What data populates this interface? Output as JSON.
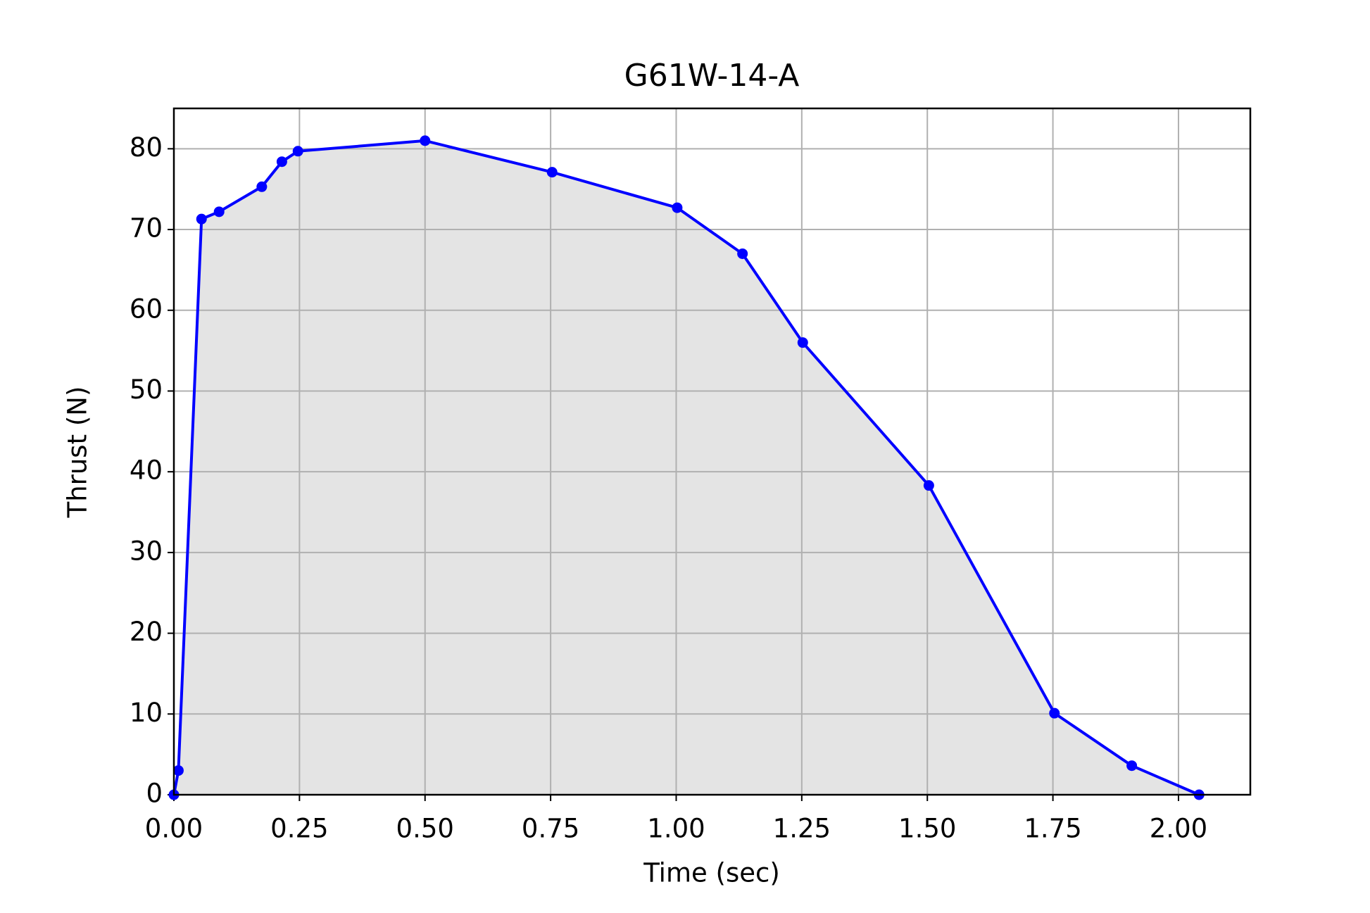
{
  "chart_data": {
    "type": "line",
    "title": "G61W-14-A",
    "x_label": "Time (sec)",
    "y_label": "Thrust (N)",
    "x": [
      0,
      0.009,
      0.055,
      0.09,
      0.175,
      0.215,
      0.247,
      0.5,
      0.753,
      1.002,
      1.132,
      1.252,
      1.503,
      1.753,
      1.907,
      2.041
    ],
    "series": [
      {
        "name": "Thrust",
        "color": "#0000ff",
        "values": [
          0,
          3.0,
          71.3,
          72.2,
          75.3,
          78.4,
          79.7,
          81.0,
          77.1,
          72.7,
          67.0,
          56.0,
          38.3,
          10.1,
          3.6,
          0
        ]
      }
    ],
    "fill_color": "#e4e4e4",
    "xlim": [
      0,
      2.143
    ],
    "ylim": [
      0,
      85
    ],
    "xticks": [
      {
        "value": 0,
        "label": "0.00"
      },
      {
        "value": 0.25,
        "label": "0.25"
      },
      {
        "value": 0.5,
        "label": "0.50"
      },
      {
        "value": 0.75,
        "label": "0.75"
      },
      {
        "value": 1,
        "label": "1.00"
      },
      {
        "value": 1.25,
        "label": "1.25"
      },
      {
        "value": 1.5,
        "label": "1.50"
      },
      {
        "value": 1.75,
        "label": "1.75"
      },
      {
        "value": 2,
        "label": "2.00"
      }
    ],
    "yticks": [
      0,
      10,
      20,
      30,
      40,
      50,
      60,
      70,
      80
    ],
    "grid": true
  }
}
